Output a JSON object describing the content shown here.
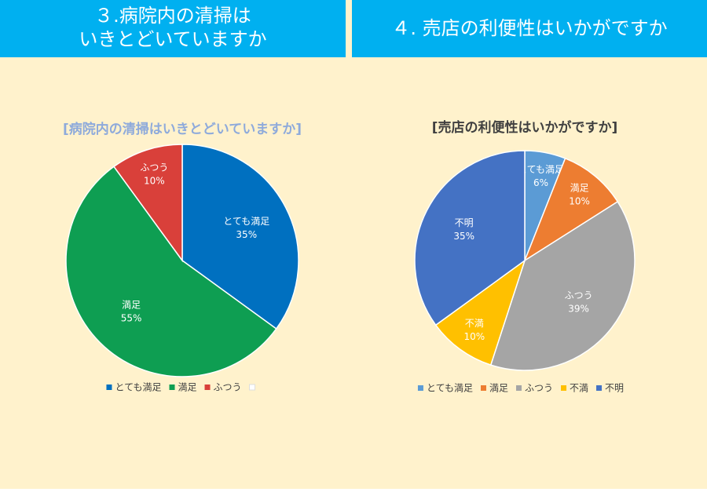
{
  "headers": [
    {
      "lines": [
        "３.病院内の清掃は",
        "いきとどいていますか"
      ]
    },
    {
      "lines": [
        "４. 売店の利便性はいかがですか"
      ]
    }
  ],
  "chart_data": [
    {
      "type": "pie",
      "title": "[病院内の清掃はいきとどいていますか]",
      "categories": [
        "とても満足",
        "満足",
        "ふつう",
        null
      ],
      "values": [
        35,
        55,
        10,
        null
      ],
      "value_labels": [
        "35%",
        "55%",
        "10%",
        null
      ],
      "colors": [
        "#0070c0",
        "#0e9e52",
        "#d9403a",
        "#ffffff"
      ],
      "title_color": "#8eaadb"
    },
    {
      "type": "pie",
      "title": "[売店の利便性はいかがですか]",
      "categories": [
        "とても満足",
        "満足",
        "ふつう",
        "不満",
        "不明"
      ],
      "values": [
        6,
        10,
        39,
        10,
        35
      ],
      "value_labels": [
        "6%",
        "10%",
        "39%",
        "10%",
        "35%"
      ],
      "colors": [
        "#5b9bd5",
        "#ed7d31",
        "#a5a5a5",
        "#ffc000",
        "#4472c4"
      ],
      "title_color": "#404040"
    }
  ]
}
